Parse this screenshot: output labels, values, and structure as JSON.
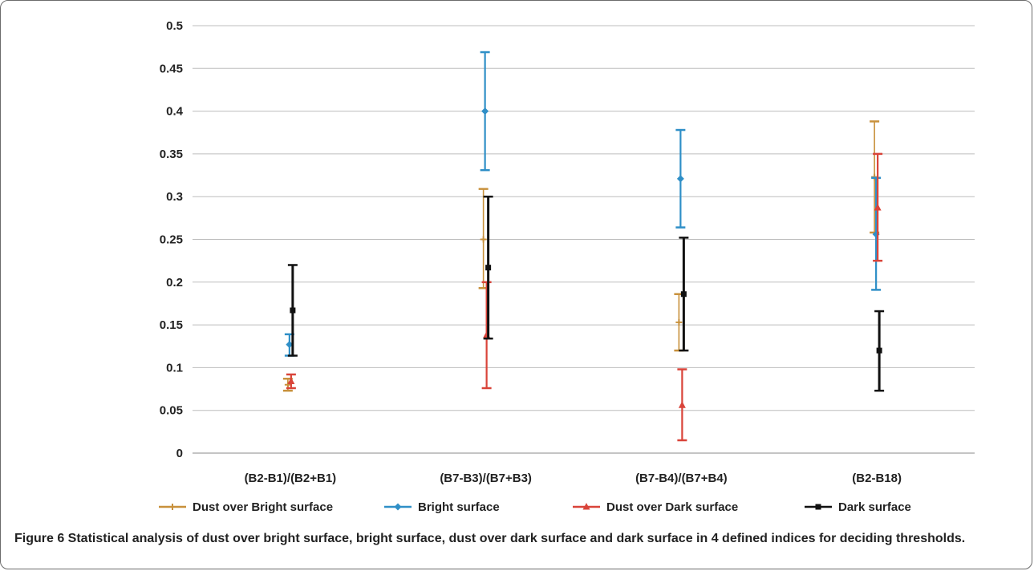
{
  "chart_data": {
    "type": "scatter",
    "title": "",
    "xlabel": "",
    "ylabel": "",
    "ylim": [
      0,
      0.5
    ],
    "yticks": [
      "0",
      "0.05",
      "0.1",
      "0.15",
      "0.2",
      "0.25",
      "0.3",
      "0.35",
      "0.4",
      "0.45",
      "0.5"
    ],
    "grid": true,
    "legend_position": "bottom",
    "categories": [
      "(B2-B1)/(B2+B1)",
      "(B7-B3)/(B7+B3)",
      "(B7-B4)/(B7+B4)",
      "(B2-B18)"
    ],
    "series": [
      {
        "name": "Dust over Bright surface",
        "color": "#c8913c",
        "marker": "plus",
        "points": [
          {
            "mean": 0.08,
            "low": 0.073,
            "high": 0.087
          },
          {
            "mean": 0.25,
            "low": 0.193,
            "high": 0.309
          },
          {
            "mean": 0.153,
            "low": 0.12,
            "high": 0.186
          },
          {
            "mean": 0.323,
            "low": 0.258,
            "high": 0.388
          }
        ]
      },
      {
        "name": "Bright surface",
        "color": "#2f8fc7",
        "marker": "diamond",
        "points": [
          {
            "mean": 0.127,
            "low": 0.114,
            "high": 0.139
          },
          {
            "mean": 0.4,
            "low": 0.331,
            "high": 0.469
          },
          {
            "mean": 0.321,
            "low": 0.264,
            "high": 0.378
          },
          {
            "mean": 0.256,
            "low": 0.191,
            "high": 0.322
          }
        ]
      },
      {
        "name": "Dust over Dark surface",
        "color": "#d9443a",
        "marker": "triangle",
        "points": [
          {
            "mean": 0.084,
            "low": 0.076,
            "high": 0.092
          },
          {
            "mean": 0.138,
            "low": 0.076,
            "high": 0.2
          },
          {
            "mean": 0.056,
            "low": 0.015,
            "high": 0.098
          },
          {
            "mean": 0.287,
            "low": 0.225,
            "high": 0.35
          }
        ]
      },
      {
        "name": "Dark surface",
        "color": "#111111",
        "marker": "square",
        "points": [
          {
            "mean": 0.167,
            "low": 0.114,
            "high": 0.22
          },
          {
            "mean": 0.217,
            "low": 0.134,
            "high": 0.3
          },
          {
            "mean": 0.186,
            "low": 0.12,
            "high": 0.252
          },
          {
            "mean": 0.12,
            "low": 0.073,
            "high": 0.166
          }
        ]
      }
    ]
  },
  "caption": {
    "label": "Figure 6",
    "text": " Statistical analysis of dust over bright surface, bright surface, dust over dark surface and dark surface in 4 defined indices for deciding thresholds."
  }
}
